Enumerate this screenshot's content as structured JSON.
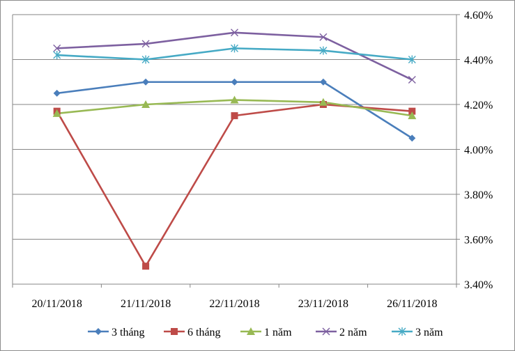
{
  "chart_data": {
    "type": "line",
    "title": "",
    "xlabel": "",
    "ylabel": "",
    "categories": [
      "20/11/2018",
      "21/11/2018",
      "22/11/2018",
      "23/11/2018",
      "26/11/2018"
    ],
    "ylim": [
      3.4,
      4.6
    ],
    "yticks": [
      "3.40%",
      "3.60%",
      "3.80%",
      "4.00%",
      "4.20%",
      "4.40%",
      "4.60%"
    ],
    "ytick_values": [
      3.4,
      3.6,
      3.8,
      4.0,
      4.2,
      4.4,
      4.6
    ],
    "y_axis_side": "right",
    "grid": "horizontal",
    "legend_position": "bottom",
    "series": [
      {
        "name": "3 tháng",
        "color": "#4a7ebb",
        "marker": "diamond",
        "values": [
          4.25,
          4.3,
          4.3,
          4.3,
          4.05
        ]
      },
      {
        "name": "6 tháng",
        "color": "#be4b48",
        "marker": "square",
        "values": [
          4.17,
          3.48,
          4.15,
          4.2,
          4.17
        ]
      },
      {
        "name": "1 năm",
        "color": "#98b954",
        "marker": "triangle",
        "values": [
          4.16,
          4.2,
          4.22,
          4.21,
          4.15
        ]
      },
      {
        "name": "2 năm",
        "color": "#7d60a0",
        "marker": "x",
        "values": [
          4.45,
          4.47,
          4.52,
          4.5,
          4.31
        ]
      },
      {
        "name": "3 năm",
        "color": "#46aac5",
        "marker": "star",
        "values": [
          4.42,
          4.4,
          4.45,
          4.44,
          4.4
        ]
      }
    ]
  }
}
